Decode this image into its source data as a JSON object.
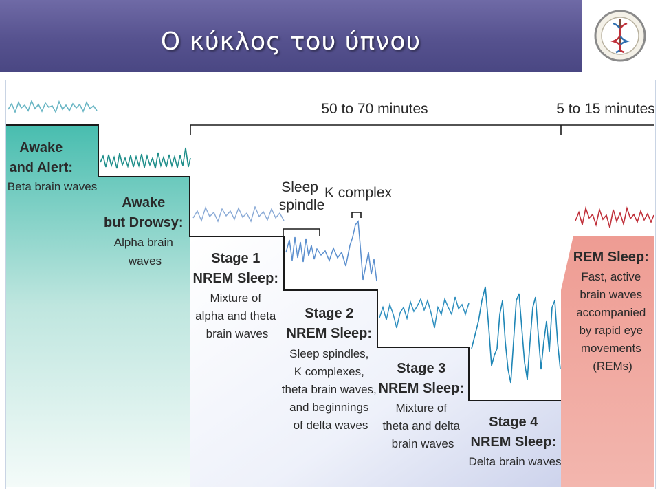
{
  "slide": {
    "title": "Ο κύκλος του ύπνου"
  },
  "header_colors": {
    "banner": "#56528f",
    "title_text": "#ffffff"
  },
  "durations": {
    "nrem_cycle": "50 to 70 minutes",
    "rem": "5 to 15 minutes"
  },
  "annotations": {
    "sleep_spindle": [
      "Sleep",
      "spindle"
    ],
    "k_complex": "K complex"
  },
  "stages": {
    "awake_alert": {
      "title": [
        "Awake",
        "and Alert:"
      ],
      "desc": [
        "Beta brain waves"
      ],
      "color": "#4fbfb0",
      "wave_color": "#6ab6c4"
    },
    "awake_drowsy": {
      "title": [
        "Awake",
        "but Drowsy:"
      ],
      "desc": [
        "Alpha brain",
        "waves"
      ],
      "color": "#4fbfb0",
      "wave_color": "#1e8e8a"
    },
    "stage1": {
      "title": [
        "Stage 1",
        "NREM Sleep:"
      ],
      "desc": [
        "Mixture of",
        "alpha and theta",
        "brain waves"
      ],
      "wave_color": "#8aaad6"
    },
    "stage2": {
      "title": [
        "Stage 2",
        "NREM Sleep:"
      ],
      "desc": [
        "Sleep spindles,",
        "K complexes,",
        "theta brain waves,",
        "and beginnings",
        "of delta waves"
      ],
      "wave_color": "#5b8fce"
    },
    "stage3": {
      "title": [
        "Stage 3",
        "NREM Sleep:"
      ],
      "desc": [
        "Mixture of",
        "theta and delta",
        "brain waves"
      ],
      "wave_color": "#2f8fbf"
    },
    "stage4": {
      "title": [
        "Stage 4",
        "NREM Sleep:"
      ],
      "desc": [
        "Delta brain waves"
      ],
      "wave_color": "#1f86b6"
    },
    "rem": {
      "title": [
        "REM Sleep:"
      ],
      "desc": [
        "Fast, active",
        "brain waves",
        "accompanied",
        "by rapid eye",
        "movements",
        "(REMs)"
      ],
      "color": "#f1aba2",
      "wave_color": "#c0303a"
    }
  }
}
